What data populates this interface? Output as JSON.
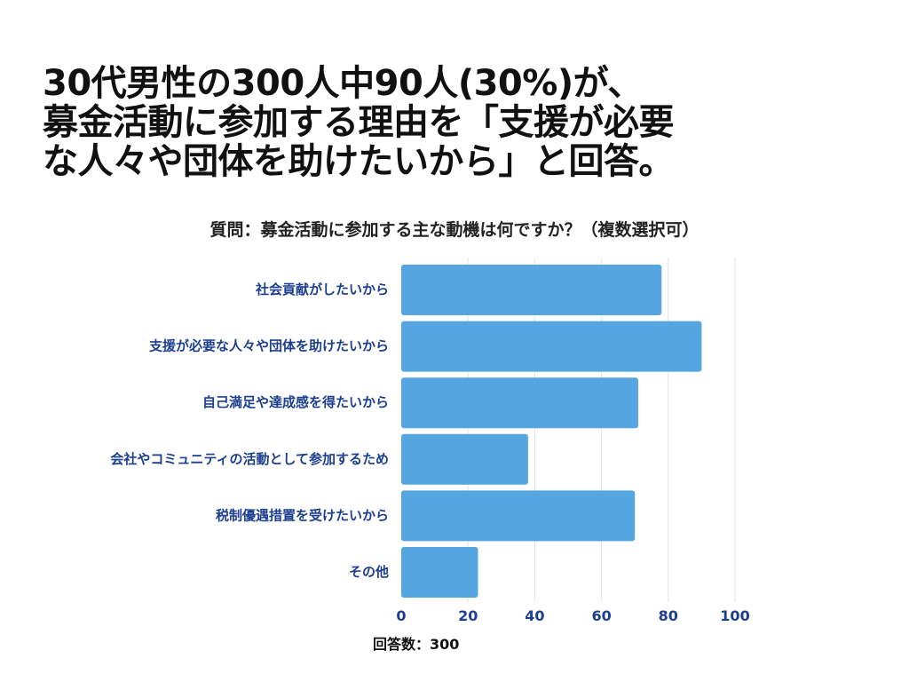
{
  "headline": {
    "line1": "30代男性の300人中90人(30%)が、",
    "line2": "募金活動に参加する理由を「支援が必要",
    "line3": "な人々や団体を助けたいから」と回答。"
  },
  "footnote": "回答数：300",
  "chart_data": {
    "type": "bar",
    "orientation": "horizontal",
    "title": "質問：募金活動に参加する主な動機は何ですか？（複数選択可）",
    "categories": [
      "社会貢献がしたいから",
      "支援が必要な人々や団体を助けたいから",
      "自己満足や達成感を得たいから",
      "会社やコミュニティの活動として参加するため",
      "税制優遇措置を受けたいから",
      "その他"
    ],
    "values": [
      78,
      90,
      71,
      38,
      70,
      23
    ],
    "xlim": [
      0,
      100
    ],
    "xticks": [
      0,
      20,
      40,
      60,
      80,
      100
    ],
    "grid": true,
    "bar_color": "#55a5e0",
    "label_color": "#1c3f8f"
  }
}
